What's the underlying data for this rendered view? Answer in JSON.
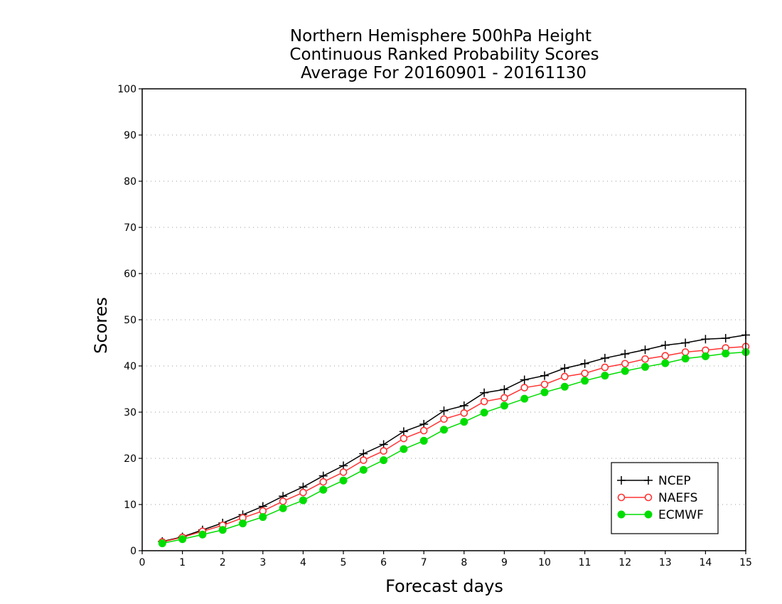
{
  "chart_data": {
    "type": "line",
    "title": [
      "Northern Hemisphere 500hPa Height",
      "Continuous Ranked Probability Scores",
      "Average For 20160901 - 20161130"
    ],
    "xlabel": "Forecast days",
    "ylabel": "Scores",
    "xlim": [
      0,
      15
    ],
    "ylim": [
      0,
      100
    ],
    "xticks": [
      0,
      1,
      2,
      3,
      4,
      5,
      6,
      7,
      8,
      9,
      10,
      11,
      12,
      13,
      14,
      15
    ],
    "yticks": [
      0,
      10,
      20,
      30,
      40,
      50,
      60,
      70,
      80,
      90,
      100
    ],
    "grid": true,
    "legend_position": "bottom-right",
    "x": [
      0.5,
      1,
      1.5,
      2,
      2.5,
      3,
      3.5,
      4,
      4.5,
      5,
      5.5,
      6,
      6.5,
      7,
      7.5,
      8,
      8.5,
      9,
      9.5,
      10,
      10.5,
      11,
      11.5,
      12,
      12.5,
      13,
      13.5,
      14,
      14.5,
      15
    ],
    "series": [
      {
        "name": "NCEP",
        "color": "#000000",
        "marker": "plus",
        "values": [
          2.0,
          3.0,
          4.5,
          6.0,
          7.8,
          9.6,
          11.8,
          13.8,
          16.2,
          18.4,
          21.0,
          23.0,
          25.8,
          27.4,
          30.3,
          31.4,
          34.2,
          34.9,
          37.0,
          37.9,
          39.5,
          40.5,
          41.7,
          42.6,
          43.5,
          44.5,
          45.0,
          45.8,
          46.0,
          46.7
        ]
      },
      {
        "name": "NAEFS",
        "color": "#ff3333",
        "marker": "open-circle",
        "values": [
          1.9,
          2.9,
          4.2,
          5.5,
          7.1,
          8.6,
          10.7,
          12.6,
          14.9,
          17.0,
          19.6,
          21.6,
          24.3,
          26.0,
          28.5,
          29.8,
          32.3,
          33.1,
          35.3,
          36.0,
          37.7,
          38.4,
          39.7,
          40.5,
          41.5,
          42.2,
          43.0,
          43.4,
          43.9,
          44.2
        ]
      },
      {
        "name": "ECMWF",
        "color": "#00dd00",
        "marker": "filled-circle",
        "values": [
          1.6,
          2.5,
          3.5,
          4.5,
          5.9,
          7.3,
          9.2,
          10.9,
          13.2,
          15.2,
          17.5,
          19.6,
          22.0,
          23.8,
          26.2,
          27.9,
          29.9,
          31.4,
          32.9,
          34.3,
          35.5,
          36.8,
          37.9,
          38.9,
          39.8,
          40.6,
          41.6,
          42.1,
          42.7,
          43.0
        ]
      }
    ]
  }
}
